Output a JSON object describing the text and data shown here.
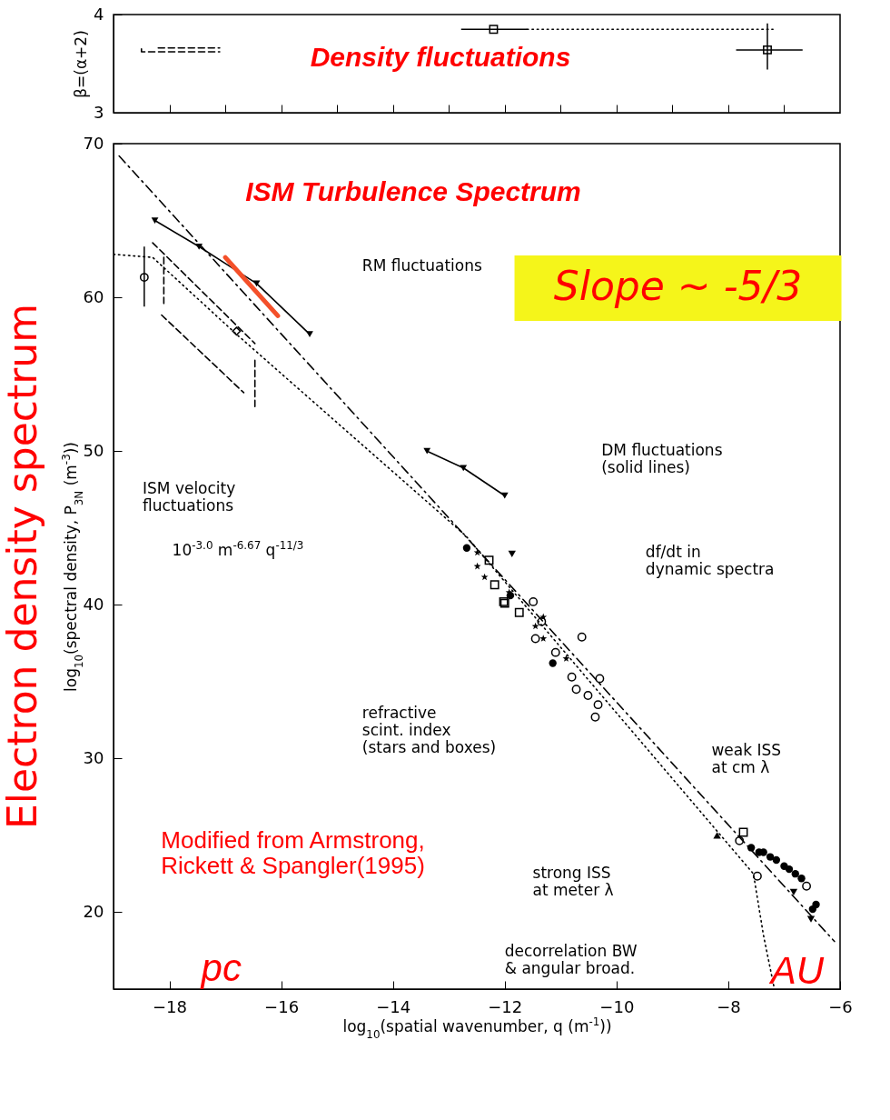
{
  "chart_data": [
    {
      "type": "scatter",
      "title": "Density fluctuations",
      "xlim": [
        -19,
        -6
      ],
      "ylim": [
        3,
        4
      ],
      "xticks": [
        {
          "value": -18,
          "label": null
        },
        {
          "value": -17,
          "label": null
        },
        {
          "value": -16,
          "label": null
        },
        {
          "value": -15,
          "label": null
        },
        {
          "value": -14,
          "label": null
        },
        {
          "value": -13,
          "label": null
        },
        {
          "value": -12,
          "label": null
        },
        {
          "value": -11,
          "label": null
        },
        {
          "value": -10,
          "label": null
        },
        {
          "value": -9,
          "label": null
        },
        {
          "value": -8,
          "label": null
        },
        {
          "value": -7,
          "label": null
        }
      ],
      "yticks": [
        3,
        4
      ],
      "tick_labels": "y",
      "ylabel": "β=(α+2)",
      "series": [
        {
          "color": "#000000",
          "marker": "square",
          "x": [
            -12.2,
            -7.3
          ],
          "values": [
            3.85,
            3.64
          ],
          "xerrors": [
            [
              -12.78,
              -11.6
            ],
            [
              -7.86,
              -6.67
            ]
          ],
          "errors": [
            null,
            [
              3.44,
              3.91
            ]
          ]
        },
        {
          "type": "line",
          "color": "#000000",
          "line_style": "dotted",
          "x": [
            -11.6,
            -7.2
          ],
          "values": [
            3.85,
            3.85
          ]
        },
        {
          "type": "line",
          "color": "#000000",
          "line_style": "dashed",
          "x": [
            -18.2,
            -17.1
          ],
          "values": [
            3.66,
            3.66
          ]
        },
        {
          "type": "line",
          "color": "#000000",
          "line_style": "dashed",
          "x": [
            -18.5,
            -18.5,
            -17.1
          ],
          "values": [
            3.65,
            3.62,
            3.62
          ]
        }
      ]
    },
    {
      "type": "scatter",
      "title": "ISM Turbulence Spectrum",
      "xlim": [
        -19,
        -6
      ],
      "ylim": [
        15,
        70
      ],
      "xticks": [
        -18,
        -16,
        -14,
        -12,
        -10,
        -8,
        -6
      ],
      "yticks": [
        20,
        30,
        40,
        50,
        60,
        70
      ],
      "xlabel": "log$_{10}$(spatial wavenumber, q (m$^{-1}$))",
      "ylabel": "log$_{10}$(spectral density, P$_{3N}$ (m$^{-3}$))",
      "annotations": [
        "Slope ~ -5/3",
        "RM fluctuations",
        "ISM velocity\nfluctuations",
        "DM fluctuations\n(solid lines)",
        "10$^{-3.0}$ m$^{-6.67}$ q$^{-11/3}$",
        "df/dt in\ndynamic spectra",
        "refractive\nscint. index\n(stars and boxes)",
        "weak ISS\nat cm λ",
        "strong ISS\nat meter λ",
        "decorrelation BW\n& angular broad.",
        "Modified from Armstrong,\nRickett & Spangler(1995)",
        "pc",
        "AU",
        "Electron density spectrum"
      ],
      "series": [
        {
          "type": "line",
          "color": "#000000",
          "line_style": "dashdot",
          "x": [
            -18.9,
            -6.1
          ],
          "values": [
            69.2,
            18.1
          ]
        },
        {
          "type": "line",
          "color": "#000000",
          "line_style": "dotted",
          "x": [
            -19,
            -18.3,
            -16.8,
            -12.7,
            -7.55,
            -7.37,
            -7.18
          ],
          "values": [
            62.8,
            62.6,
            57.6,
            44.5,
            22.5,
            18.5,
            15.1
          ]
        },
        {
          "type": "line",
          "color": "#000000",
          "line_style": "dashed",
          "x": [
            -18.3,
            -16.47
          ],
          "values": [
            63.55,
            57.0
          ]
        },
        {
          "type": "line",
          "color": "#000000",
          "line_style": "dashed",
          "x": [
            -18.14,
            -16.67
          ],
          "values": [
            58.85,
            53.8
          ]
        },
        {
          "type": "line",
          "color": "#000000",
          "line_style": "dashed",
          "x": [
            -16.47,
            -16.47
          ],
          "values": [
            55.9,
            52.9
          ]
        },
        {
          "type": "line",
          "color": "#000000",
          "line_style": "dashed",
          "x": [
            -18.1,
            -18.1
          ],
          "values": [
            62.6,
            59.6
          ]
        },
        {
          "type": "line",
          "color": "#000000",
          "line_style": "solid",
          "marker": "triangle-down",
          "x": [
            -18.26,
            -17.47,
            -16.44,
            -15.49
          ],
          "values": [
            65.0,
            63.3,
            60.9,
            57.6
          ]
        },
        {
          "type": "line",
          "color": "#000000",
          "line_style": "solid",
          "marker": "triangle-down",
          "x": [
            -13.39,
            -12.74,
            -12.0
          ],
          "values": [
            50.0,
            48.9,
            47.1
          ]
        },
        {
          "type": "line",
          "color": "#f4502a",
          "line_style": "solid",
          "x": [
            -17.0,
            -16.06
          ],
          "values": [
            62.6,
            58.8
          ]
        },
        {
          "color": "#000000",
          "marker": "circle",
          "x": [
            -18.45
          ],
          "values": [
            61.3
          ],
          "errors": [
            [
              59.4,
              63.3
            ]
          ]
        },
        {
          "color": "#000000",
          "marker": "diamond",
          "x": [
            -16.8
          ],
          "values": [
            57.8
          ]
        },
        {
          "color": "#000000",
          "marker": "star",
          "x": [
            -12.49,
            -12.49,
            -12.36,
            -11.92,
            -11.45,
            -11.31,
            -11.31,
            -10.9
          ],
          "values": [
            43.4,
            42.5,
            41.8,
            40.8,
            38.6,
            39.2,
            37.8,
            36.5
          ]
        },
        {
          "color": "#000000",
          "marker": "square",
          "x": [
            -12.28,
            -12.18,
            -12.02,
            -11.74,
            -12.0
          ],
          "values": [
            42.9,
            41.3,
            40.2,
            39.5,
            40.1
          ]
        },
        {
          "color": "#000000",
          "marker": "circle",
          "x": [
            -12.68,
            -11.9,
            -11.14
          ],
          "values": [
            43.7,
            40.6,
            36.2
          ]
        },
        {
          "color": "#000000",
          "marker": "circle",
          "x": [
            -11.49,
            -11.34,
            -11.45,
            -11.09,
            -10.8,
            -10.72,
            -10.51,
            -10.33,
            -10.38,
            -10.3,
            -10.62
          ],
          "values": [
            40.2,
            38.9,
            37.8,
            36.9,
            35.3,
            34.5,
            34.1,
            33.5,
            32.7,
            35.2,
            37.9
          ]
        },
        {
          "color": "#000000",
          "marker": "triangle-down",
          "x": [
            -11.87
          ],
          "values": [
            43.3
          ]
        },
        {
          "color": "#000000",
          "marker": "circle",
          "x": [
            -7.59,
            -7.45,
            -7.37,
            -7.25,
            -7.14,
            -7.0,
            -6.91,
            -6.8,
            -6.69,
            -6.43,
            -6.49
          ],
          "values": [
            24.2,
            23.9,
            23.9,
            23.6,
            23.4,
            23.0,
            22.8,
            22.5,
            22.2,
            20.5,
            20.2
          ]
        },
        {
          "color": "#000000",
          "marker": "circle",
          "x": [
            -7.8,
            -7.18,
            -6.6,
            -7.48
          ],
          "values": [
            24.65,
            null,
            21.7,
            22.35
          ]
        },
        {
          "color": "#000000",
          "marker": "triangle-down",
          "x": [
            -6.83,
            -6.52
          ],
          "values": [
            21.3,
            19.55
          ]
        },
        {
          "color": "#000000",
          "marker": "triangle",
          "x": [
            -8.2
          ],
          "values": [
            25.0
          ]
        },
        {
          "color": "#000000",
          "marker": "square",
          "x": [
            -7.73
          ],
          "values": [
            25.2
          ]
        }
      ]
    }
  ]
}
